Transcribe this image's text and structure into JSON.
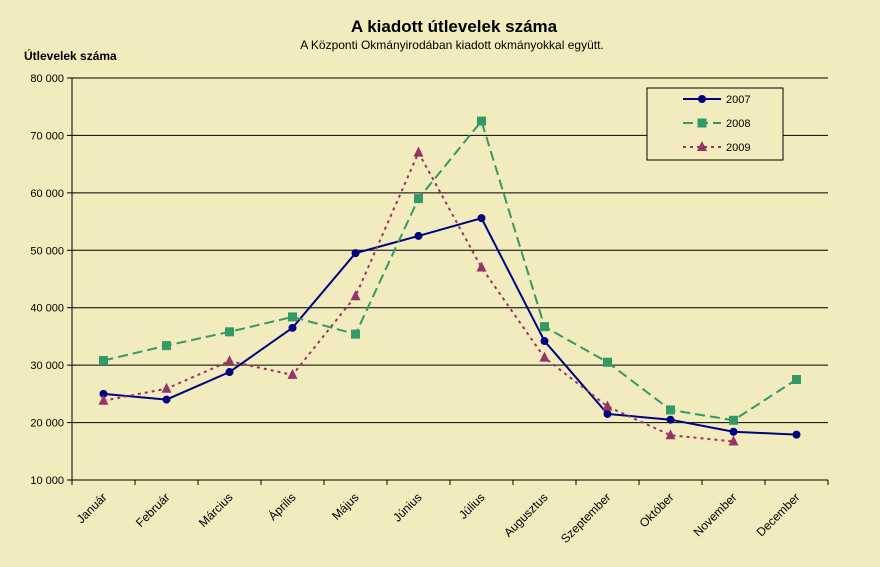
{
  "chart_data": {
    "type": "line",
    "title": "A  kiadott útlevelek száma",
    "subtitle": "A Központi Okmányirodában kiadott okmányokkal együtt.",
    "xlabel": "",
    "ylabel": "Útlevelek száma",
    "ylim": [
      10000,
      80000
    ],
    "yticks": [
      10000,
      20000,
      30000,
      40000,
      50000,
      60000,
      70000,
      80000
    ],
    "ytick_labels": [
      "10 000",
      "20 000",
      "30 000",
      "40 000",
      "50 000",
      "60 000",
      "70 000",
      "80 000"
    ],
    "categories": [
      "Január",
      "Február",
      "Március",
      "Április",
      "Május",
      "Június",
      "Július",
      "Augusztus",
      "Szeptember",
      "Október",
      "November",
      "December"
    ],
    "grid": "horizontal",
    "legend_position": "top-right",
    "background_color": "#f1ebbd",
    "series": [
      {
        "name": "2007",
        "color": "#000080",
        "line_style": "solid",
        "marker": "circle",
        "values": [
          25000,
          24000,
          28800,
          36500,
          49500,
          52500,
          55600,
          34200,
          21500,
          20500,
          18400,
          17900
        ]
      },
      {
        "name": "2008",
        "color": "#339966",
        "line_style": "dashed",
        "marker": "square",
        "values": [
          30800,
          33400,
          35800,
          38400,
          35400,
          59000,
          72500,
          36700,
          30500,
          22200,
          20400,
          27500
        ]
      },
      {
        "name": "2009",
        "color": "#993366",
        "line_style": "dotted",
        "marker": "triangle",
        "values": [
          23800,
          25900,
          30700,
          28300,
          42000,
          67000,
          47000,
          31300,
          22800,
          17800,
          16700,
          null
        ]
      }
    ]
  }
}
